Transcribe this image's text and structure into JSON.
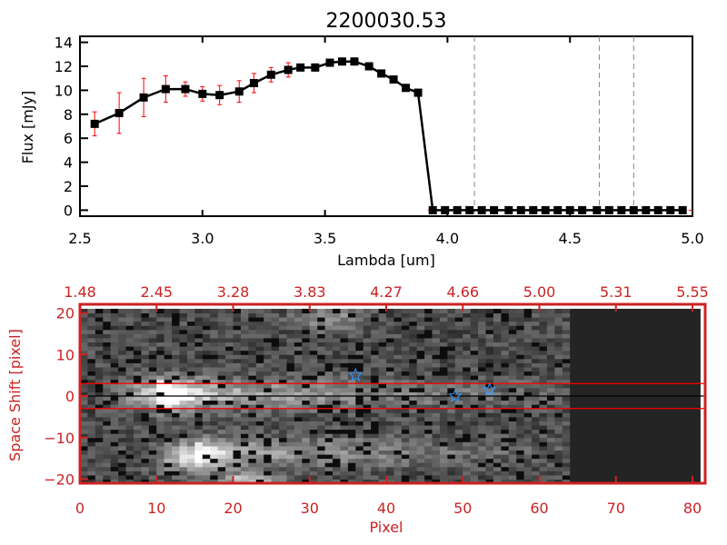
{
  "colors": {
    "line": "#000000",
    "errorbar": "#ff0000",
    "axis2": "#cc2222",
    "star": "#3399ff",
    "slit": "#ff0000"
  },
  "chart_data": [
    {
      "type": "line",
      "title": "2200030.53",
      "xlabel": "Lambda [um]",
      "ylabel": "Flux [mJy]",
      "xlim": [
        2.5,
        5.0
      ],
      "ylim": [
        -0.5,
        14.5
      ],
      "xticks": [
        "2.5",
        "3.0",
        "3.5",
        "4.0",
        "4.5",
        "5.0"
      ],
      "yticks": [
        "0",
        "2",
        "4",
        "6",
        "8",
        "10",
        "12",
        "14"
      ],
      "marker": "square",
      "x": [
        2.56,
        2.66,
        2.76,
        2.85,
        2.93,
        3.0,
        3.07,
        3.15,
        3.21,
        3.28,
        3.35,
        3.4,
        3.46,
        3.52,
        3.57,
        3.62,
        3.68,
        3.73,
        3.78,
        3.83,
        3.88,
        3.94,
        3.99,
        4.04,
        4.09,
        4.14,
        4.19,
        4.25,
        4.3,
        4.35,
        4.4,
        4.45,
        4.5,
        4.55,
        4.61,
        4.66,
        4.71,
        4.76,
        4.81,
        4.86,
        4.91,
        4.96
      ],
      "y": [
        7.2,
        8.1,
        9.4,
        10.1,
        10.1,
        9.7,
        9.6,
        9.9,
        10.6,
        11.3,
        11.7,
        11.9,
        11.9,
        12.3,
        12.4,
        12.4,
        12.0,
        11.4,
        10.9,
        10.2,
        9.8,
        0,
        0,
        0,
        0,
        0,
        0,
        0,
        0,
        0,
        0,
        0,
        0,
        0,
        0,
        0,
        0,
        0,
        0,
        0,
        0,
        0
      ],
      "yerr": [
        1.0,
        1.7,
        1.6,
        1.1,
        0.6,
        0.6,
        0.8,
        0.9,
        0.8,
        0.6,
        0.6,
        0.2,
        0.3,
        0.3,
        0.2,
        0.2,
        0.2,
        0.2,
        0.2,
        0.2,
        0.2,
        0,
        0,
        0,
        0,
        0,
        0,
        0,
        0,
        0,
        0,
        0,
        0,
        0,
        0,
        0,
        0,
        0,
        0,
        0,
        0,
        0
      ],
      "vlines_dashed": [
        4.11,
        4.62,
        4.76
      ]
    },
    {
      "type": "heatmap",
      "xlabel": "Pixel",
      "ylabel": "Space Shift [pixel]",
      "xlim": [
        0,
        81
      ],
      "ylim": [
        -21,
        21
      ],
      "xticks": [
        "0",
        "10",
        "20",
        "30",
        "40",
        "50",
        "60",
        "70",
        "80"
      ],
      "yticks": [
        "-20",
        "-10",
        "0",
        "10",
        "20"
      ],
      "top_xticks": [
        "1.48",
        "2.45",
        "3.28",
        "3.83",
        "4.27",
        "4.66",
        "5.00",
        "5.31",
        "5.55"
      ],
      "colormap": "grayscale",
      "hlines": [
        {
          "y": 3,
          "color": "red"
        },
        {
          "y": -3,
          "color": "red"
        },
        {
          "y": 0,
          "color": "black"
        }
      ],
      "stars": [
        {
          "x": 36,
          "y": 5
        },
        {
          "x": 49,
          "y": 0
        },
        {
          "x": 53.5,
          "y": 1.5
        }
      ]
    }
  ]
}
